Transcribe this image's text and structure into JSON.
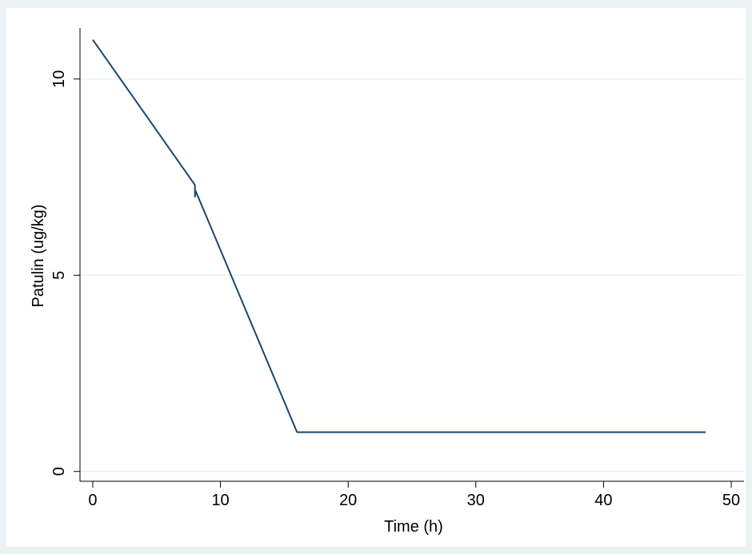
{
  "colors": {
    "outer_background": "#eaf2f3",
    "plot_background": "#ffffff",
    "gridline": "#eaf2f3",
    "axis": "#000000",
    "series_line": "#1a476f"
  },
  "chart_data": {
    "type": "line",
    "title": "",
    "xlabel": "Time (h)",
    "ylabel": "Patulin (ug/kg)",
    "xlim": [
      -1,
      51
    ],
    "ylim": [
      -0.25,
      11.3
    ],
    "xticks": [
      0,
      10,
      20,
      30,
      40,
      50
    ],
    "yticks": [
      0,
      5,
      10
    ],
    "grid": "horizontal",
    "legend": "none",
    "series": [
      {
        "x": [
          0,
          8,
          8,
          8.05,
          16,
          48
        ],
        "y": [
          11.0,
          7.3,
          7.0,
          7.15,
          1.0,
          1.0
        ]
      }
    ]
  }
}
